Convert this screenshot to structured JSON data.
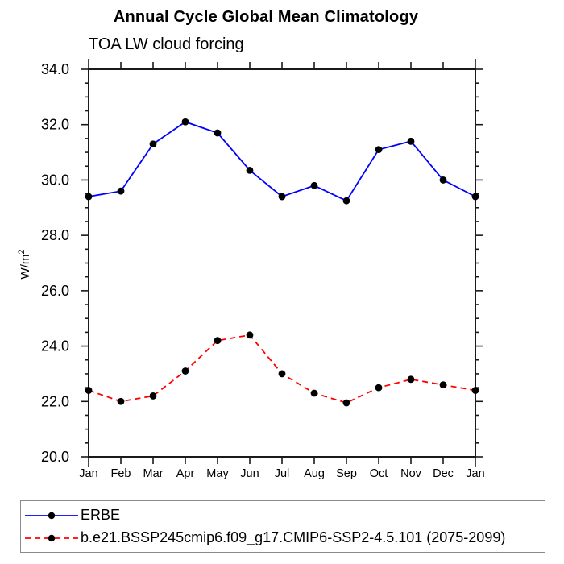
{
  "header": {
    "title": "Annual Cycle Global Mean Climatology",
    "subtitle": "TOA LW cloud forcing"
  },
  "chart_data": {
    "type": "line",
    "title": "Annual Cycle Global Mean Climatology",
    "subtitle": "TOA LW cloud forcing",
    "ylabel_base": "W/m",
    "ylabel_sup": "2",
    "x_categories": [
      "Jan",
      "Feb",
      "Mar",
      "Apr",
      "May",
      "Jun",
      "Jul",
      "Aug",
      "Sep",
      "Oct",
      "Nov",
      "Dec",
      "Jan"
    ],
    "ylim": [
      20.0,
      34.0
    ],
    "y_major_step": 2.0,
    "y_minor_step": 0.5,
    "y_tick_labels": [
      "20.0",
      "22.0",
      "24.0",
      "26.0",
      "28.0",
      "30.0",
      "32.0",
      "34.0"
    ],
    "grid": false,
    "legend_position": "bottom-left-box",
    "axis_color": "#1a1a1a",
    "marker_color": "#000000",
    "series": [
      {
        "name": "ERBE",
        "color": "#0000ff",
        "line_style": "solid",
        "marker": "filled-circle",
        "values": [
          29.4,
          29.6,
          31.3,
          32.1,
          31.7,
          30.35,
          29.4,
          29.8,
          29.25,
          31.1,
          31.4,
          30.0,
          29.4
        ]
      },
      {
        "name": "b.e21.BSSP245cmip6.f09_g17.CMIP6-SSP2-4.5.101 (2075-2099)",
        "color": "#ff0000",
        "line_style": "dashed",
        "marker": "filled-circle",
        "values": [
          22.4,
          22.0,
          22.2,
          23.1,
          24.2,
          24.4,
          23.0,
          22.3,
          21.95,
          22.5,
          22.8,
          22.6,
          22.4
        ]
      }
    ]
  }
}
